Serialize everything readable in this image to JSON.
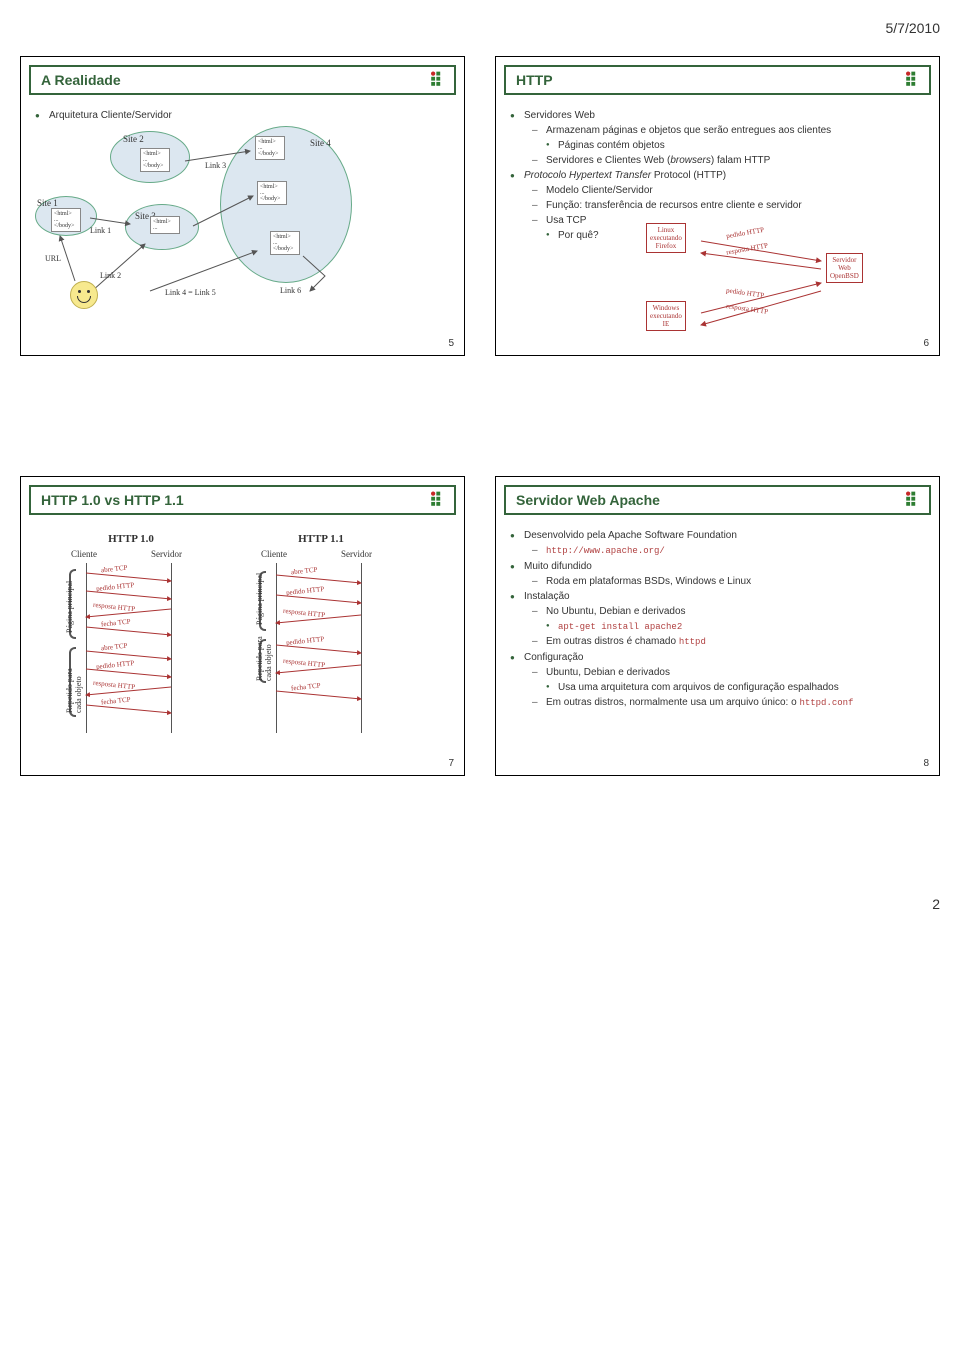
{
  "page": {
    "date": "5/7/2010",
    "number": "2"
  },
  "slide5": {
    "title": "A Realidade",
    "number": "5",
    "bullet": "Arquitetura Cliente/Servidor",
    "sites": {
      "s1": "Site 1",
      "s2": "Site 2",
      "s3": "Site 3",
      "s4": "Site 4"
    },
    "links": {
      "l1": "Link 1",
      "l2": "Link 2",
      "l3": "Link 3",
      "l4": "Link 4 = Link 5",
      "l6": "Link 6"
    },
    "url": "URL",
    "file_boxes": [
      {
        "html": "<html>\n...\n</body>"
      }
    ]
  },
  "slide6": {
    "title": "HTTP",
    "number": "6",
    "lines": [
      {
        "lvl": 1,
        "t": "Servidores Web"
      },
      {
        "lvl": 2,
        "dash": true,
        "t": "Armazenam páginas e objetos que serão entregues aos clientes"
      },
      {
        "lvl": 3,
        "t": "Páginas contém objetos"
      },
      {
        "lvl": 2,
        "dash": true,
        "t": "Servidores e Clientes Web (browsers) falam HTTP",
        "italic_words": [
          "browsers"
        ]
      },
      {
        "lvl": 1,
        "t": "Protocolo Hypertext Transfer Protocol (HTTP)",
        "italic_words": [
          "Hypertext",
          "Transfer",
          "Protocol"
        ]
      },
      {
        "lvl": 2,
        "dash": true,
        "t": "Modelo Cliente/Servidor"
      },
      {
        "lvl": 2,
        "dash": true,
        "t": "Função: transferência de recursos entre cliente e servidor"
      },
      {
        "lvl": 2,
        "dash": true,
        "t": "Usa TCP"
      },
      {
        "lvl": 3,
        "t": "Por quê?"
      }
    ],
    "diagram": {
      "client1": "Linux\nexecutando\nFirefox",
      "client2": "Windows\nexecutando\nIE",
      "server": "Servidor\nWeb\nOpenBSD",
      "msgs": {
        "req": "pedido HTTP",
        "res": "resposta HTTP"
      }
    }
  },
  "slide7": {
    "title": "HTTP 1.0 vs HTTP 1.1",
    "number": "7",
    "seq1": {
      "title": "HTTP 1.0",
      "cols": {
        "c": "Cliente",
        "s": "Servidor"
      },
      "side1": "Página principal",
      "side2": "Repetido para\ncada objeto",
      "msgs": [
        "abre TCP",
        "pedido HTTP",
        "resposta HTTP",
        "fecha TCP",
        "abre TCP",
        "pedido HTTP",
        "resposta HTTP",
        "fecha TCP"
      ]
    },
    "seq2": {
      "title": "HTTP 1.1",
      "cols": {
        "c": "Cliente",
        "s": "Servidor"
      },
      "side1": "Página principal",
      "side2": "Repetido para\ncada objeto",
      "msgs": [
        "abre TCP",
        "pedido HTTP",
        "resposta HTTP",
        "pedido HTTP",
        "resposta HTTP",
        "fecha TCP"
      ]
    }
  },
  "slide8": {
    "title": "Servidor Web Apache",
    "number": "8",
    "lines": [
      {
        "lvl": 1,
        "t": "Desenvolvido pela Apache Software Foundation"
      },
      {
        "lvl": 2,
        "dash": true,
        "code": true,
        "t": "http://www.apache.org/"
      },
      {
        "lvl": 1,
        "t": "Muito difundido"
      },
      {
        "lvl": 2,
        "dash": true,
        "t": "Roda em plataformas BSDs, Windows e Linux"
      },
      {
        "lvl": 1,
        "t": "Instalação"
      },
      {
        "lvl": 2,
        "dash": true,
        "t": "No Ubuntu, Debian e derivados"
      },
      {
        "lvl": 3,
        "code": true,
        "t": "apt-get install apache2"
      },
      {
        "lvl": 2,
        "dash": true,
        "t": "Em outras distros é chamado httpd",
        "code_tail": "httpd"
      },
      {
        "lvl": 1,
        "t": "Configuração"
      },
      {
        "lvl": 2,
        "dash": true,
        "t": "Ubuntu, Debian e derivados"
      },
      {
        "lvl": 3,
        "t": "Usa uma arquitetura com arquivos de configuração espalhados"
      },
      {
        "lvl": 2,
        "dash": true,
        "t": "Em outras distros, normalmente usa um arquivo único: o httpd.conf",
        "code_tail": "httpd.conf"
      }
    ]
  },
  "colors": {
    "accent": "#34643b",
    "if_green": "#2e7d32",
    "if_red": "#c62828"
  }
}
